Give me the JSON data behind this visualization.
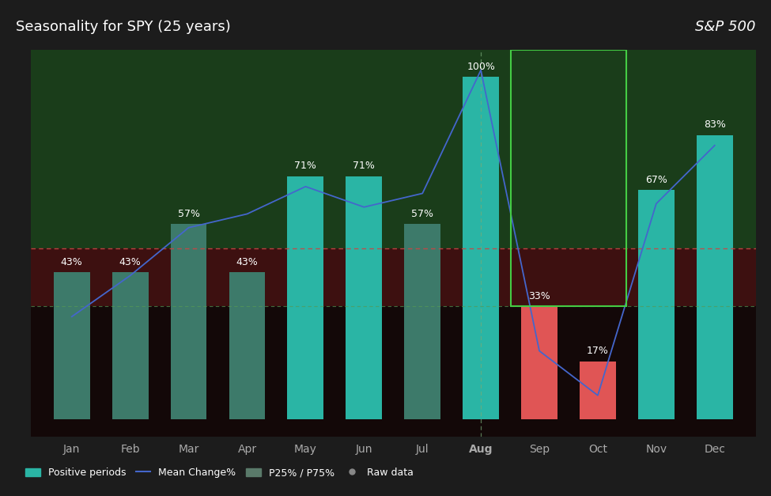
{
  "months": [
    "Jan",
    "Feb",
    "Mar",
    "Apr",
    "May",
    "Jun",
    "Jul",
    "Aug",
    "Sep",
    "Oct",
    "Nov",
    "Dec"
  ],
  "positive_pct": [
    43,
    43,
    57,
    43,
    71,
    71,
    57,
    100,
    33,
    17,
    67,
    83
  ],
  "bar_colors": [
    "#3d7a6a",
    "#3d7a6a",
    "#3d7a6a",
    "#3d7a6a",
    "#2ab5a5",
    "#2ab5a5",
    "#3d7a6a",
    "#2ab5a5",
    "#e05555",
    "#e05555",
    "#2ab5a5",
    "#2ab5a5"
  ],
  "background_dark": "#1c1c1c",
  "bg_upper_green": "#1a3d1a",
  "bg_lower_red": "#3d1010",
  "bg_very_dark": "#130808",
  "title_left": "Seasonality for SPY (25 years)",
  "title_right": "S&P 500",
  "line_color": "#4466cc",
  "line_y": [
    30,
    42,
    56,
    60,
    68,
    62,
    66,
    102,
    20,
    7,
    63,
    80
  ],
  "upper_thresh": 50,
  "lower_thresh": 33,
  "upper_dashed_color": "#cc4444",
  "lower_dashed_color": "#559955",
  "aug_dashed_color": "#77aa77",
  "xlabel_color": "#aaaaaa",
  "aug_color": "white",
  "label_fontsize": 9,
  "title_fontsize": 13,
  "highlight_box_color": "#44cc44",
  "legend_teal": "#2ab5a5",
  "legend_line_color": "#4466cc",
  "legend_gray": "#5a7a6a",
  "legend_dot_color": "#888888",
  "ymin": -5,
  "ymax": 108
}
